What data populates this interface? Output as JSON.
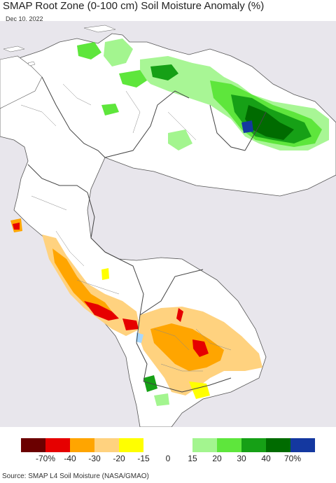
{
  "header": {
    "title": "SMAP Root Zone (0-100 cm) Soil Moisture Anomaly (%)",
    "date": "Dec 10, 2022"
  },
  "legend": {
    "colors": [
      "#6b0000",
      "#e60000",
      "#ffa500",
      "#ffd27f",
      "#ffff00",
      "#ffffff",
      "#ffffff",
      "#a3f58f",
      "#5ee63c",
      "#16a016",
      "#006b00",
      "#1438a0"
    ],
    "tick_labels": [
      "-70%",
      "-40",
      "-30",
      "-20",
      "-15",
      "0",
      "15",
      "20",
      "30",
      "40",
      "70%"
    ]
  },
  "source": "Source: SMAP L4 Soil Moisture (NASA/GMAO)"
}
